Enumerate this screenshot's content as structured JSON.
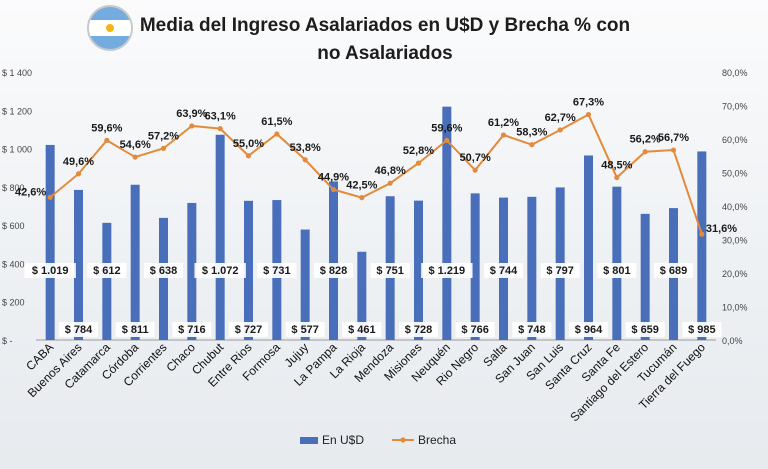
{
  "title_line1": "Media del Ingreso Asalariados en U$D y Brecha % con",
  "title_line2": "no Asalariados",
  "chart_data": {
    "type": "bar+line",
    "title": "Media del Ingreso Asalariados en U$D y Brecha % con no Asalariados",
    "categories": [
      "CABA",
      "Buenos Aires",
      "Catamarca",
      "Córdoba",
      "Corrientes",
      "Chaco",
      "Chubut",
      "Entre Rios",
      "Formosa",
      "Jujuy",
      "La Pampa",
      "La Rioja",
      "Mendoza",
      "Misiones",
      "Neuquén",
      "Rio Negro",
      "Salta",
      "San Juan",
      "San Luis",
      "Santa Cruz",
      "Santa Fe",
      "Santiago del Estero",
      "Tucumán",
      "Tierra del Fuego"
    ],
    "series": [
      {
        "name": "En U$D",
        "type": "bar",
        "axis": "left",
        "color": "#4a6fba",
        "values": [
          1019,
          784,
          612,
          811,
          638,
          716,
          1072,
          727,
          731,
          577,
          828,
          461,
          751,
          728,
          1219,
          766,
          744,
          748,
          797,
          964,
          801,
          659,
          689,
          985
        ],
        "labels": [
          "$ 1.019",
          "$ 784",
          "$ 612",
          "$ 811",
          "$ 638",
          "$ 716",
          "$ 1.072",
          "$ 727",
          "$ 731",
          "$ 577",
          "$ 828",
          "$ 461",
          "$ 751",
          "$ 728",
          "$ 1.219",
          "$ 766",
          "$ 744",
          "$ 748",
          "$ 797",
          "$ 964",
          "$ 801",
          "$ 659",
          "$ 689",
          "$ 985"
        ]
      },
      {
        "name": "Brecha",
        "type": "line",
        "axis": "right",
        "color": "#e38b3c",
        "values": [
          42.6,
          49.6,
          59.6,
          54.6,
          57.2,
          63.9,
          63.1,
          55.0,
          61.5,
          53.8,
          44.9,
          42.5,
          46.8,
          52.8,
          59.6,
          50.7,
          61.2,
          58.3,
          62.7,
          67.3,
          48.5,
          56.2,
          56.7,
          31.6
        ],
        "labels": [
          "42,6%",
          "49,6%",
          "59,6%",
          "54,6%",
          "57,2%",
          "63,9%",
          "63,1%",
          "55,0%",
          "61,5%",
          "53,8%",
          "44,9%",
          "42,5%",
          "46,8%",
          "52,8%",
          "59,6%",
          "50,7%",
          "61,2%",
          "58,3%",
          "62,7%",
          "67,3%",
          "48,5%",
          "56,2%",
          "56,7%",
          "31,6%"
        ]
      }
    ],
    "y_left": {
      "min": 0,
      "max": 1400,
      "ticks": [
        "$ -",
        "$ 200",
        "$ 400",
        "$ 600",
        "$ 800",
        "$ 1 000",
        "$ 1 200",
        "$ 1 400"
      ]
    },
    "y_right": {
      "min": 0,
      "max": 80,
      "ticks": [
        "0,0%",
        "10,0%",
        "20,0%",
        "30,0%",
        "40,0%",
        "50,0%",
        "60,0%",
        "70,0%",
        "80,0%"
      ]
    },
    "grid": false,
    "legend_position": "bottom"
  }
}
